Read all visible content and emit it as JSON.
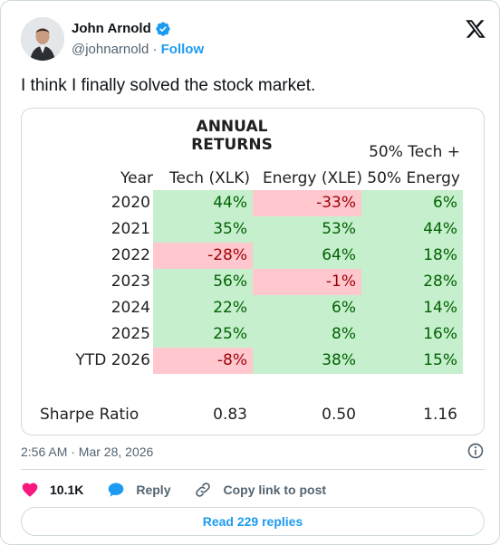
{
  "colors": {
    "accent": "#1d9bf0",
    "like": "#f91880",
    "positive_fill": "#c6efce",
    "positive_text": "#006100",
    "negative_fill": "#ffc7ce",
    "negative_text": "#9c0006"
  },
  "icons": {
    "platform": "x-logo-icon",
    "verified": "verified-badge-icon",
    "info": "info-icon",
    "like": "heart-icon",
    "reply": "speech-bubble-icon",
    "copy": "link-icon"
  },
  "author": {
    "name": "John Arnold",
    "handle": "@johnarnold",
    "separator": " · ",
    "follow_label": "Follow"
  },
  "tweet": {
    "text": "I think I finally solved the stock market.",
    "timestamp": "2:56 AM · Mar 28, 2026"
  },
  "table": {
    "title": "ANNUAL RETURNS",
    "header_line1": "50% Tech +",
    "headers": {
      "year": "Year",
      "tech": "Tech (XLK)",
      "energy": "Energy (XLE)",
      "mix": "50% Energy"
    },
    "rows": [
      {
        "year": "2020",
        "tech": "44%",
        "energy": "-33%",
        "mix": "6%"
      },
      {
        "year": "2021",
        "tech": "35%",
        "energy": "53%",
        "mix": "44%"
      },
      {
        "year": "2022",
        "tech": "-28%",
        "energy": "64%",
        "mix": "18%"
      },
      {
        "year": "2023",
        "tech": "56%",
        "energy": "-1%",
        "mix": "28%"
      },
      {
        "year": "2024",
        "tech": "22%",
        "energy": "6%",
        "mix": "14%"
      },
      {
        "year": "2025",
        "tech": "25%",
        "energy": "8%",
        "mix": "16%"
      },
      {
        "year": "YTD 2026",
        "tech": "-8%",
        "energy": "38%",
        "mix": "15%"
      }
    ],
    "sharpe": {
      "label": "Sharpe Ratio",
      "tech": "0.83",
      "energy": "0.50",
      "mix": "1.16"
    }
  },
  "actions": {
    "likes": "10.1K",
    "reply_label": "Reply",
    "copy_label": "Copy link to post",
    "read_replies": "Read 229 replies"
  }
}
